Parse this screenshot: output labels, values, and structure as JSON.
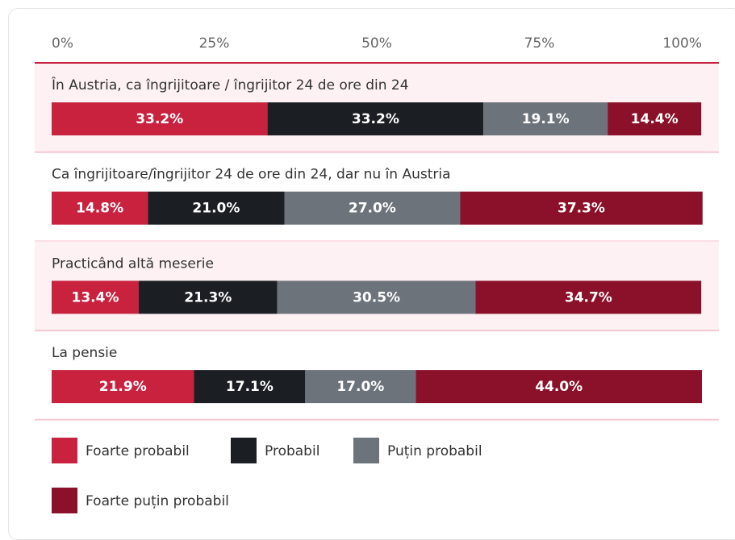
{
  "chart_data": {
    "type": "stacked-bar-horizontal",
    "categories": [
      "În Austria, ca îngrijitoare / îngrijitor 24 de ore din 24",
      "Ca îngrijitoare/îngrijitor 24 de ore din 24, dar nu în Austria",
      "Practicând altă meserie",
      "La pensie"
    ],
    "series": [
      {
        "name": "Foarte probabil",
        "color": "#c8223f",
        "values": [
          33.2,
          14.8,
          13.4,
          21.9
        ],
        "value_labels": [
          "33.2%",
          "14.8%",
          "13.4%",
          "21.9%"
        ]
      },
      {
        "name": "Probabil",
        "color": "#1b1f23",
        "values": [
          33.2,
          21.0,
          21.3,
          17.1
        ],
        "value_labels": [
          "33.2%",
          "21.0%",
          "21.3%",
          "17.1%"
        ]
      },
      {
        "name": "Puțin probabil",
        "color": "#6c737b",
        "values": [
          19.1,
          27.0,
          30.5,
          17.0
        ],
        "value_labels": [
          "19.1%",
          "27.0%",
          "30.5%",
          "17.0%"
        ]
      },
      {
        "name": "Foarte puțin probabil",
        "color": "#8b1029",
        "values": [
          14.4,
          37.3,
          34.7,
          44.0
        ],
        "value_labels": [
          "14.4%",
          "37.3%",
          "34.7%",
          "44.0%"
        ]
      }
    ],
    "xlim": [
      0,
      100
    ],
    "xticks": [
      {
        "value": 0,
        "label": "0%"
      },
      {
        "value": 25,
        "label": "25%"
      },
      {
        "value": 50,
        "label": "50%"
      },
      {
        "value": 75,
        "label": "75%"
      },
      {
        "value": 100,
        "label": "100%"
      }
    ]
  }
}
